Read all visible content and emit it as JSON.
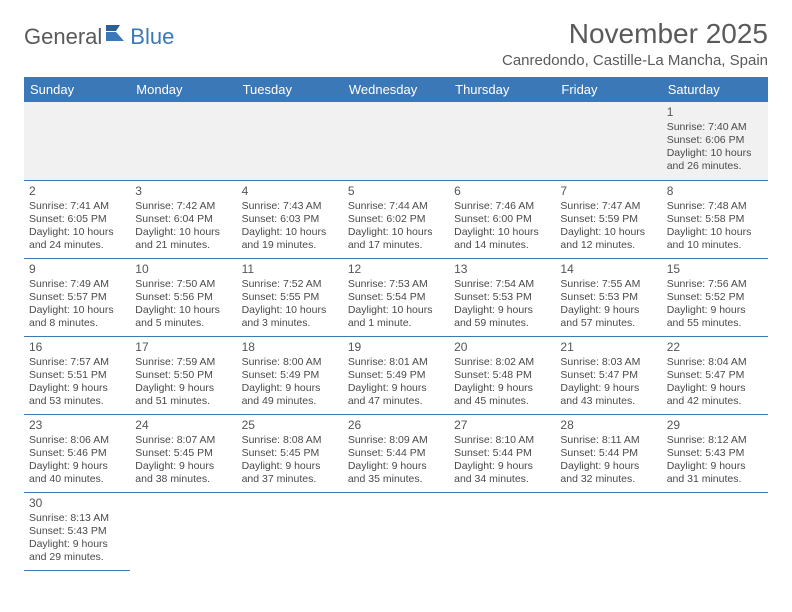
{
  "brand": {
    "part1": "General",
    "part2": "Blue"
  },
  "title": "November 2025",
  "location": "Canredondo, Castille-La Mancha, Spain",
  "colors": {
    "header_bg": "#3b78b8",
    "header_text": "#ffffff",
    "cell_border": "#3b78b8",
    "empty_bg": "#f1f1f1",
    "text": "#4a4a4a",
    "title_text": "#5a5a5a"
  },
  "fonts": {
    "title_size": 28,
    "location_size": 15,
    "day_header_size": 13,
    "cell_size": 10.5
  },
  "day_headers": [
    "Sunday",
    "Monday",
    "Tuesday",
    "Wednesday",
    "Thursday",
    "Friday",
    "Saturday"
  ],
  "weeks": [
    [
      null,
      null,
      null,
      null,
      null,
      null,
      {
        "n": "1",
        "sr": "Sunrise: 7:40 AM",
        "ss": "Sunset: 6:06 PM",
        "d1": "Daylight: 10 hours",
        "d2": "and 26 minutes."
      }
    ],
    [
      {
        "n": "2",
        "sr": "Sunrise: 7:41 AM",
        "ss": "Sunset: 6:05 PM",
        "d1": "Daylight: 10 hours",
        "d2": "and 24 minutes."
      },
      {
        "n": "3",
        "sr": "Sunrise: 7:42 AM",
        "ss": "Sunset: 6:04 PM",
        "d1": "Daylight: 10 hours",
        "d2": "and 21 minutes."
      },
      {
        "n": "4",
        "sr": "Sunrise: 7:43 AM",
        "ss": "Sunset: 6:03 PM",
        "d1": "Daylight: 10 hours",
        "d2": "and 19 minutes."
      },
      {
        "n": "5",
        "sr": "Sunrise: 7:44 AM",
        "ss": "Sunset: 6:02 PM",
        "d1": "Daylight: 10 hours",
        "d2": "and 17 minutes."
      },
      {
        "n": "6",
        "sr": "Sunrise: 7:46 AM",
        "ss": "Sunset: 6:00 PM",
        "d1": "Daylight: 10 hours",
        "d2": "and 14 minutes."
      },
      {
        "n": "7",
        "sr": "Sunrise: 7:47 AM",
        "ss": "Sunset: 5:59 PM",
        "d1": "Daylight: 10 hours",
        "d2": "and 12 minutes."
      },
      {
        "n": "8",
        "sr": "Sunrise: 7:48 AM",
        "ss": "Sunset: 5:58 PM",
        "d1": "Daylight: 10 hours",
        "d2": "and 10 minutes."
      }
    ],
    [
      {
        "n": "9",
        "sr": "Sunrise: 7:49 AM",
        "ss": "Sunset: 5:57 PM",
        "d1": "Daylight: 10 hours",
        "d2": "and 8 minutes."
      },
      {
        "n": "10",
        "sr": "Sunrise: 7:50 AM",
        "ss": "Sunset: 5:56 PM",
        "d1": "Daylight: 10 hours",
        "d2": "and 5 minutes."
      },
      {
        "n": "11",
        "sr": "Sunrise: 7:52 AM",
        "ss": "Sunset: 5:55 PM",
        "d1": "Daylight: 10 hours",
        "d2": "and 3 minutes."
      },
      {
        "n": "12",
        "sr": "Sunrise: 7:53 AM",
        "ss": "Sunset: 5:54 PM",
        "d1": "Daylight: 10 hours",
        "d2": "and 1 minute."
      },
      {
        "n": "13",
        "sr": "Sunrise: 7:54 AM",
        "ss": "Sunset: 5:53 PM",
        "d1": "Daylight: 9 hours",
        "d2": "and 59 minutes."
      },
      {
        "n": "14",
        "sr": "Sunrise: 7:55 AM",
        "ss": "Sunset: 5:53 PM",
        "d1": "Daylight: 9 hours",
        "d2": "and 57 minutes."
      },
      {
        "n": "15",
        "sr": "Sunrise: 7:56 AM",
        "ss": "Sunset: 5:52 PM",
        "d1": "Daylight: 9 hours",
        "d2": "and 55 minutes."
      }
    ],
    [
      {
        "n": "16",
        "sr": "Sunrise: 7:57 AM",
        "ss": "Sunset: 5:51 PM",
        "d1": "Daylight: 9 hours",
        "d2": "and 53 minutes."
      },
      {
        "n": "17",
        "sr": "Sunrise: 7:59 AM",
        "ss": "Sunset: 5:50 PM",
        "d1": "Daylight: 9 hours",
        "d2": "and 51 minutes."
      },
      {
        "n": "18",
        "sr": "Sunrise: 8:00 AM",
        "ss": "Sunset: 5:49 PM",
        "d1": "Daylight: 9 hours",
        "d2": "and 49 minutes."
      },
      {
        "n": "19",
        "sr": "Sunrise: 8:01 AM",
        "ss": "Sunset: 5:49 PM",
        "d1": "Daylight: 9 hours",
        "d2": "and 47 minutes."
      },
      {
        "n": "20",
        "sr": "Sunrise: 8:02 AM",
        "ss": "Sunset: 5:48 PM",
        "d1": "Daylight: 9 hours",
        "d2": "and 45 minutes."
      },
      {
        "n": "21",
        "sr": "Sunrise: 8:03 AM",
        "ss": "Sunset: 5:47 PM",
        "d1": "Daylight: 9 hours",
        "d2": "and 43 minutes."
      },
      {
        "n": "22",
        "sr": "Sunrise: 8:04 AM",
        "ss": "Sunset: 5:47 PM",
        "d1": "Daylight: 9 hours",
        "d2": "and 42 minutes."
      }
    ],
    [
      {
        "n": "23",
        "sr": "Sunrise: 8:06 AM",
        "ss": "Sunset: 5:46 PM",
        "d1": "Daylight: 9 hours",
        "d2": "and 40 minutes."
      },
      {
        "n": "24",
        "sr": "Sunrise: 8:07 AM",
        "ss": "Sunset: 5:45 PM",
        "d1": "Daylight: 9 hours",
        "d2": "and 38 minutes."
      },
      {
        "n": "25",
        "sr": "Sunrise: 8:08 AM",
        "ss": "Sunset: 5:45 PM",
        "d1": "Daylight: 9 hours",
        "d2": "and 37 minutes."
      },
      {
        "n": "26",
        "sr": "Sunrise: 8:09 AM",
        "ss": "Sunset: 5:44 PM",
        "d1": "Daylight: 9 hours",
        "d2": "and 35 minutes."
      },
      {
        "n": "27",
        "sr": "Sunrise: 8:10 AM",
        "ss": "Sunset: 5:44 PM",
        "d1": "Daylight: 9 hours",
        "d2": "and 34 minutes."
      },
      {
        "n": "28",
        "sr": "Sunrise: 8:11 AM",
        "ss": "Sunset: 5:44 PM",
        "d1": "Daylight: 9 hours",
        "d2": "and 32 minutes."
      },
      {
        "n": "29",
        "sr": "Sunrise: 8:12 AM",
        "ss": "Sunset: 5:43 PM",
        "d1": "Daylight: 9 hours",
        "d2": "and 31 minutes."
      }
    ],
    [
      {
        "n": "30",
        "sr": "Sunrise: 8:13 AM",
        "ss": "Sunset: 5:43 PM",
        "d1": "Daylight: 9 hours",
        "d2": "and 29 minutes."
      },
      null,
      null,
      null,
      null,
      null,
      null
    ]
  ]
}
